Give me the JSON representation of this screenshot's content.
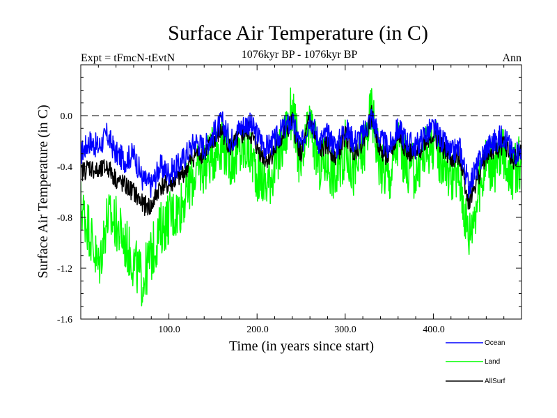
{
  "chart_data": {
    "type": "line",
    "title": "Surface Air Temperature (in C)",
    "subtitle_left": "Expt = tFmcN-tEvtN",
    "subtitle_center": "1076kyr BP - 1076kyr BP",
    "subtitle_right": "Ann",
    "xlabel": "Time (in years since start)",
    "ylabel": "Surface Air Temperature (in C)",
    "xlim": [
      0,
      500
    ],
    "ylim": [
      -1.6,
      0.4
    ],
    "x_ticks": [
      100,
      200,
      300,
      400
    ],
    "x_tick_labels": [
      "100.0",
      "200.0",
      "300.0",
      "400.0"
    ],
    "y_ticks": [
      -1.6,
      -1.2,
      -0.8,
      -0.4,
      0.0
    ],
    "y_tick_labels": [
      "-1.6",
      "-1.2",
      "-0.8",
      "-0.4",
      "0.0"
    ],
    "reference_line": 0.0,
    "legend_position": "bottom-right",
    "colors": {
      "ocean": "#0000ff",
      "land": "#00ff00",
      "allsurf": "#000000",
      "axis": "#000000",
      "zero": "#000000"
    },
    "series": [
      {
        "name": "Ocean",
        "key": "ocean",
        "x": [
          0,
          10,
          20,
          30,
          40,
          50,
          60,
          70,
          80,
          90,
          100,
          110,
          120,
          130,
          140,
          150,
          160,
          170,
          180,
          190,
          200,
          210,
          220,
          230,
          240,
          250,
          260,
          270,
          280,
          290,
          300,
          310,
          320,
          330,
          340,
          350,
          360,
          370,
          380,
          390,
          400,
          410,
          420,
          430,
          440,
          450,
          460,
          470,
          480,
          490,
          500
        ],
        "values": [
          -0.3,
          -0.2,
          -0.25,
          -0.15,
          -0.3,
          -0.35,
          -0.3,
          -0.5,
          -0.55,
          -0.4,
          -0.45,
          -0.4,
          -0.3,
          -0.2,
          -0.25,
          -0.15,
          -0.05,
          -0.2,
          -0.1,
          -0.05,
          -0.15,
          -0.25,
          -0.2,
          -0.1,
          -0.05,
          -0.25,
          0.0,
          -0.2,
          -0.15,
          -0.25,
          -0.1,
          -0.2,
          -0.15,
          0.0,
          -0.2,
          -0.25,
          -0.1,
          -0.2,
          -0.25,
          -0.15,
          -0.1,
          -0.2,
          -0.3,
          -0.25,
          -0.55,
          -0.4,
          -0.25,
          -0.2,
          -0.15,
          -0.3,
          -0.25
        ]
      },
      {
        "name": "Land",
        "key": "land",
        "x": [
          0,
          10,
          20,
          30,
          40,
          50,
          60,
          70,
          80,
          90,
          100,
          110,
          120,
          130,
          140,
          150,
          160,
          170,
          180,
          190,
          200,
          210,
          220,
          230,
          240,
          250,
          260,
          270,
          280,
          290,
          300,
          310,
          320,
          330,
          340,
          350,
          360,
          370,
          380,
          390,
          400,
          410,
          420,
          430,
          440,
          450,
          460,
          470,
          480,
          490,
          500
        ],
        "values": [
          -0.7,
          -0.9,
          -1.2,
          -0.8,
          -0.85,
          -1.0,
          -1.15,
          -1.3,
          -1.1,
          -0.9,
          -0.8,
          -0.75,
          -0.6,
          -0.45,
          -0.4,
          -0.3,
          -0.2,
          -0.35,
          -0.3,
          -0.25,
          -0.45,
          -0.55,
          -0.4,
          -0.2,
          0.05,
          -0.45,
          -0.05,
          -0.4,
          -0.35,
          -0.5,
          -0.25,
          -0.45,
          -0.3,
          0.05,
          -0.4,
          -0.5,
          -0.2,
          -0.4,
          -0.45,
          -0.3,
          -0.2,
          -0.35,
          -0.45,
          -0.5,
          -0.95,
          -0.65,
          -0.35,
          -0.4,
          -0.3,
          -0.45,
          -0.35
        ]
      },
      {
        "name": "AllSurf",
        "key": "allsurf",
        "x": [
          0,
          10,
          20,
          30,
          40,
          50,
          60,
          70,
          80,
          90,
          100,
          110,
          120,
          130,
          140,
          150,
          160,
          170,
          180,
          190,
          200,
          210,
          220,
          230,
          240,
          250,
          260,
          270,
          280,
          290,
          300,
          310,
          320,
          330,
          340,
          350,
          360,
          370,
          380,
          390,
          400,
          410,
          420,
          430,
          440,
          450,
          460,
          470,
          480,
          490,
          500
        ],
        "values": [
          -0.45,
          -0.4,
          -0.45,
          -0.4,
          -0.5,
          -0.55,
          -0.6,
          -0.7,
          -0.72,
          -0.55,
          -0.55,
          -0.5,
          -0.42,
          -0.3,
          -0.3,
          -0.2,
          -0.12,
          -0.25,
          -0.18,
          -0.12,
          -0.25,
          -0.35,
          -0.28,
          -0.15,
          -0.05,
          -0.32,
          -0.02,
          -0.28,
          -0.23,
          -0.33,
          -0.15,
          -0.28,
          -0.2,
          0.0,
          -0.28,
          -0.33,
          -0.15,
          -0.28,
          -0.32,
          -0.2,
          -0.15,
          -0.25,
          -0.35,
          -0.32,
          -0.68,
          -0.5,
          -0.3,
          -0.28,
          -0.22,
          -0.35,
          -0.28
        ]
      }
    ]
  }
}
